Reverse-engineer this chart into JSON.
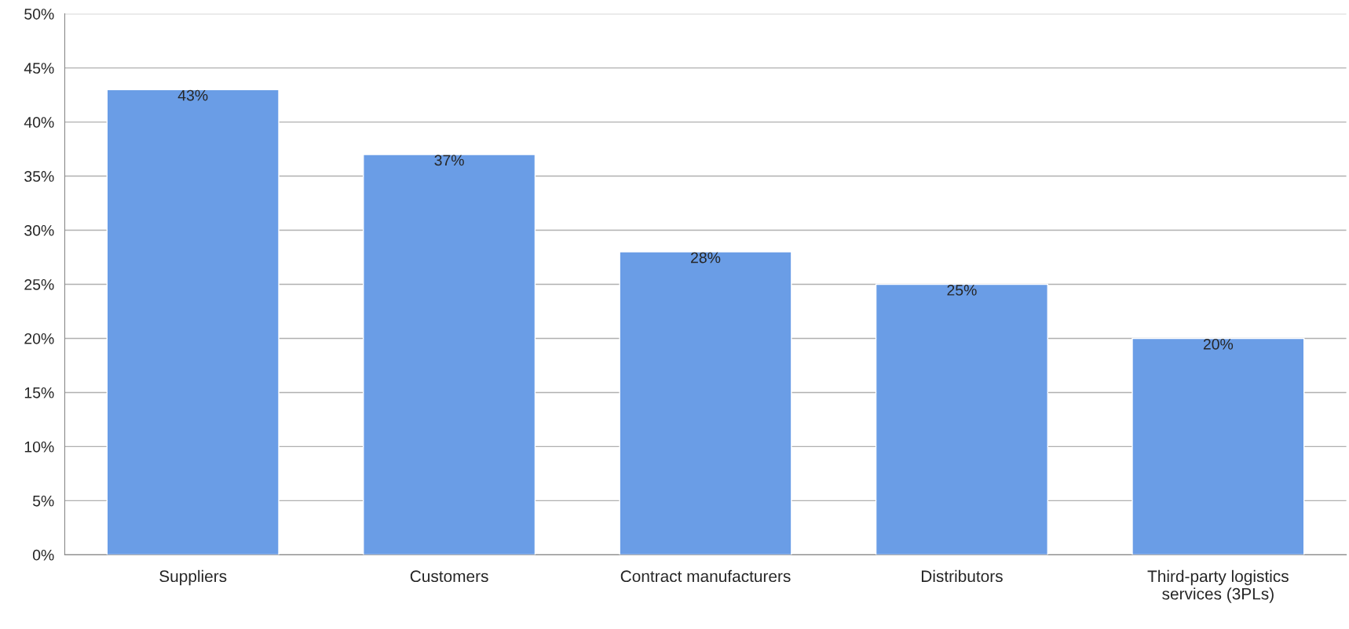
{
  "chart_data": {
    "type": "bar",
    "categories": [
      "Suppliers",
      "Customers",
      "Contract manufacturers",
      "Distributors",
      "Third-party logistics\nservices (3PLs)"
    ],
    "values": [
      43,
      37,
      28,
      25,
      20
    ],
    "value_labels": [
      "43%",
      "37%",
      "28%",
      "25%",
      "20%"
    ],
    "color": "#6a9de6",
    "ylim": [
      0,
      50
    ],
    "yticks": [
      {
        "value": 0,
        "label": "0%"
      },
      {
        "value": 5,
        "label": "5%"
      },
      {
        "value": 10,
        "label": "10%"
      },
      {
        "value": 15,
        "label": "15%"
      },
      {
        "value": 20,
        "label": "20%"
      },
      {
        "value": 25,
        "label": "25%"
      },
      {
        "value": 30,
        "label": "30%"
      },
      {
        "value": 35,
        "label": "35%"
      },
      {
        "value": 40,
        "label": "40%"
      },
      {
        "value": 45,
        "label": "45%"
      },
      {
        "value": 50,
        "label": "50%"
      }
    ],
    "grid": "y"
  }
}
